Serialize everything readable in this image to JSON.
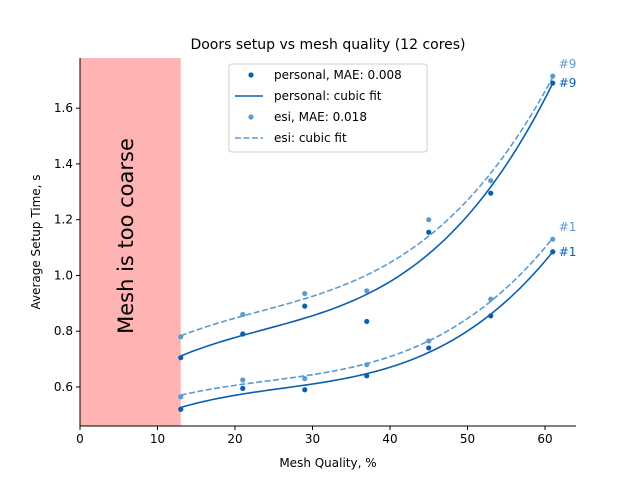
{
  "chart_data": {
    "type": "scatter",
    "title": "Doors setup vs mesh quality (12 cores)",
    "xlabel": "Mesh Quality, %",
    "ylabel": "Average Setup Time, s",
    "xlim": [
      0,
      64
    ],
    "ylim": [
      0.46,
      1.78
    ],
    "xticks": [
      0,
      10,
      20,
      30,
      40,
      50,
      60
    ],
    "yticks": [
      0.6,
      0.8,
      1.0,
      1.2,
      1.4,
      1.6
    ],
    "grid": false,
    "legend_position": "top-center",
    "shaded_region": {
      "x": [
        0,
        13
      ],
      "label": "Mesh is too coarse",
      "color": "#ffb3b3"
    },
    "colors": {
      "personal": "#0a5fb0",
      "esi": "#5b9bcf"
    },
    "legend": [
      {
        "label": "personal, MAE: 0.008",
        "kind": "dot",
        "series": "personal"
      },
      {
        "label": "personal: cubic fit",
        "kind": "solid",
        "series": "personal"
      },
      {
        "label": "esi, MAE: 0.018",
        "kind": "dot",
        "series": "esi"
      },
      {
        "label": "esi: cubic fit",
        "kind": "dashed",
        "series": "esi"
      }
    ],
    "x": [
      13,
      21,
      29,
      37,
      45,
      53,
      61
    ],
    "series": [
      {
        "name": "personal",
        "group": "#1",
        "values": [
          0.52,
          0.595,
          0.59,
          0.64,
          0.74,
          0.855,
          1.085
        ]
      },
      {
        "name": "personal",
        "group": "#9",
        "values": [
          0.705,
          0.79,
          0.89,
          0.835,
          1.155,
          1.295,
          1.69
        ]
      },
      {
        "name": "esi",
        "group": "#1",
        "values": [
          0.565,
          0.625,
          0.63,
          0.68,
          0.765,
          0.915,
          1.13
        ]
      },
      {
        "name": "esi",
        "group": "#9",
        "values": [
          0.78,
          0.86,
          0.935,
          0.945,
          1.2,
          1.34,
          1.715
        ]
      }
    ],
    "end_labels": [
      {
        "text": "#9",
        "series": "esi",
        "group": "#9"
      },
      {
        "text": "#9",
        "series": "personal",
        "group": "#9"
      },
      {
        "text": "#1",
        "series": "esi",
        "group": "#1"
      },
      {
        "text": "#1",
        "series": "personal",
        "group": "#1"
      }
    ]
  }
}
